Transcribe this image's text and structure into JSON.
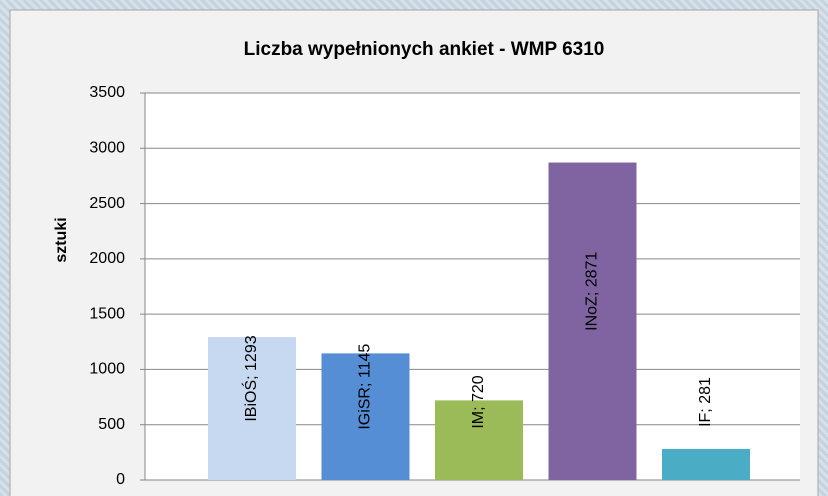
{
  "chart_data": {
    "type": "bar",
    "title": "Liczba wypełnionych ankiet - WMP 6310",
    "y_label": "sztuki",
    "categories": [
      null,
      null,
      null,
      null,
      null
    ],
    "values": [
      1293,
      1145,
      720,
      2871,
      281
    ],
    "value_labels": [
      "IBiOŚ; 1293",
      "IGiSR; 1145",
      "IM; 720",
      "INoZ; 2871",
      "IF; 281"
    ],
    "colors": [
      "#c6d9f1",
      "#558ed5",
      "#9bbb59",
      "#8064a2",
      "#4bacc6"
    ],
    "ylim": [
      0,
      3500
    ],
    "yticks": [
      0,
      500,
      1000,
      1500,
      2000,
      2500,
      3000,
      3500
    ],
    "grid": true
  }
}
